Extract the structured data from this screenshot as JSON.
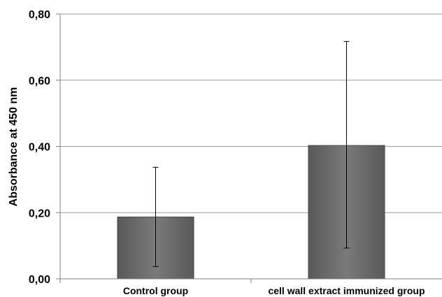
{
  "chart_data": {
    "type": "bar",
    "categories": [
      "Control group",
      "cell wall extract immunized group"
    ],
    "values": [
      0.187,
      0.403
    ],
    "error_low": [
      0.037,
      0.093
    ],
    "error_high": [
      0.337,
      0.717
    ],
    "ylabel": "Absorbance at 450 nm",
    "xlabel": "",
    "ylim": [
      0,
      0.8
    ],
    "yticks": [
      0,
      0.2,
      0.4,
      0.6,
      0.8
    ],
    "ytick_labels": [
      "0,00",
      "0,20",
      "0,40",
      "0,60",
      "0,80"
    ],
    "grid": true,
    "legend": "none",
    "colors": {
      "bar": "#595959",
      "bar_highlight": "#7a7a7a",
      "grid": "#9a9a9a",
      "axis": "#7f7f7f",
      "error_bar": "#000000"
    }
  }
}
